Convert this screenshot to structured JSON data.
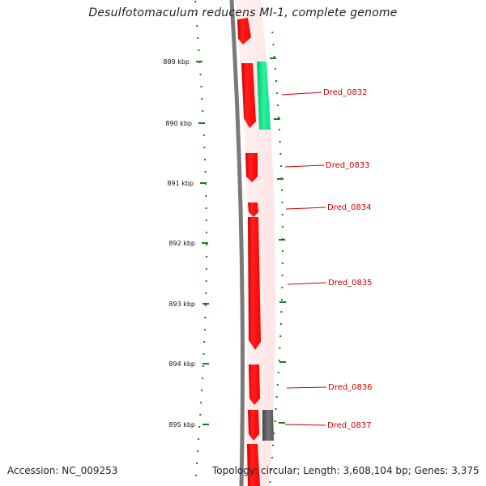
{
  "title": "Desulfotomaculum reducens MI-1, complete genome",
  "accession": "Accession: NC_009253",
  "topology": "Topology: circular; Length: 3,608,104 bp; Genes: 3,375",
  "colors": {
    "forward_gene": "#ff0000",
    "rna_gene": "#00e58c",
    "other_gene": "#555555",
    "backbone": "#7a7a7a",
    "tick": "#1e7b1e",
    "label": "#cc0000"
  },
  "axis_labels": [
    "889 kbp",
    "890 kbp",
    "891 kbp",
    "892 kbp",
    "893 kbp",
    "894 kbp",
    "895 kbp"
  ],
  "gene_labels": [
    "Dred_0832",
    "Dred_0833",
    "Dred_0834",
    "Dred_0835",
    "Dred_0836",
    "Dred_0837"
  ]
}
